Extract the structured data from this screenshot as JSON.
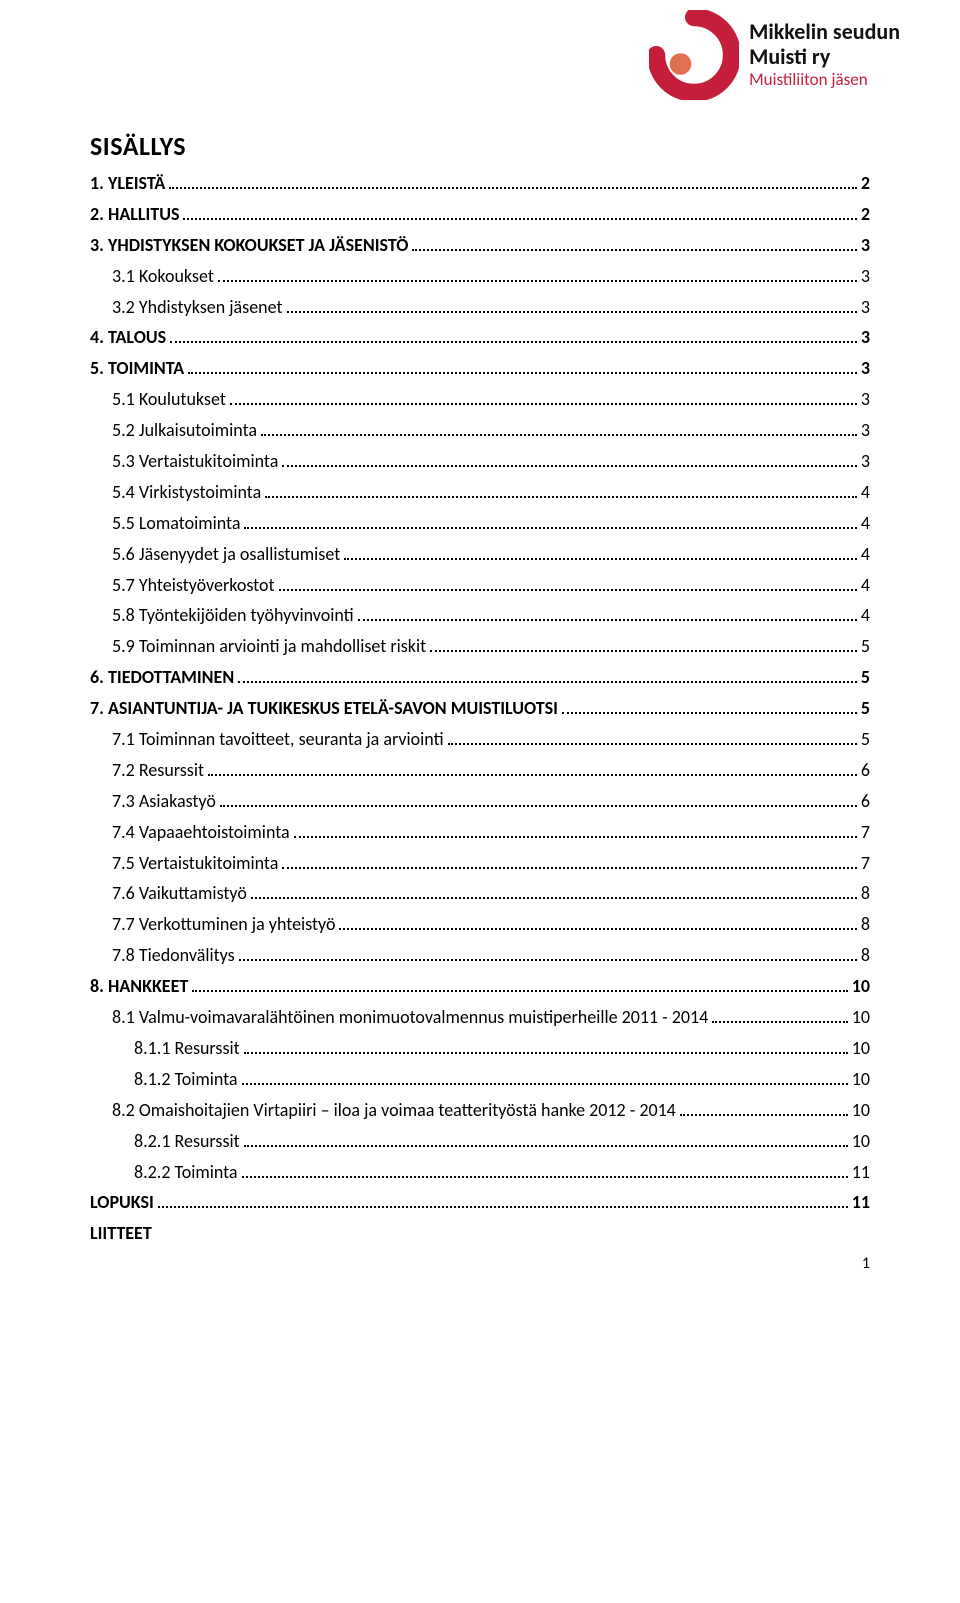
{
  "logo": {
    "line1": "Mikkelin seudun",
    "line2": "Muisti ry",
    "line3": "Muistiliiton jäsen",
    "outer_color": "#c41e3a",
    "inner_color": "#e07050"
  },
  "title": "SISÄLLYS",
  "footer_page": "1",
  "toc": [
    {
      "level": 1,
      "label": "1.    YLEISTÄ",
      "page": "2"
    },
    {
      "level": 1,
      "label": "2.    HALLITUS",
      "page": "2"
    },
    {
      "level": 1,
      "label": "3.    YHDISTYKSEN KOKOUKSET JA JÄSENISTÖ",
      "page": "3"
    },
    {
      "level": 2,
      "label": "3.1 Kokoukset",
      "page": "3"
    },
    {
      "level": 2,
      "label": "3.2 Yhdistyksen jäsenet",
      "page": "3"
    },
    {
      "level": 1,
      "label": "4.    TALOUS",
      "page": "3"
    },
    {
      "level": 1,
      "label": "5.    TOIMINTA",
      "page": "3"
    },
    {
      "level": 2,
      "label": "5.1 Koulutukset",
      "page": "3"
    },
    {
      "level": 2,
      "label": "5.2 Julkaisutoiminta",
      "page": "3"
    },
    {
      "level": 2,
      "label": "5.3 Vertaistukitoiminta",
      "page": "3"
    },
    {
      "level": 2,
      "label": "5.4 Virkistystoiminta",
      "page": "4"
    },
    {
      "level": 2,
      "label": "5.5 Lomatoiminta",
      "page": "4"
    },
    {
      "level": 2,
      "label": "5.6 Jäsenyydet ja osallistumiset",
      "page": "4"
    },
    {
      "level": 2,
      "label": "5.7 Yhteistyöverkostot",
      "page": "4"
    },
    {
      "level": 2,
      "label": "5.8 Työntekijöiden työhyvinvointi",
      "page": "4"
    },
    {
      "level": 2,
      "label": "5.9 Toiminnan arviointi ja mahdolliset riskit",
      "page": "5"
    },
    {
      "level": 1,
      "label": "6.    TIEDOTTAMINEN",
      "page": "5"
    },
    {
      "level": 1,
      "label": "7. ASIANTUNTIJA- JA TUKIKESKUS ETELÄ-SAVON MUISTILUOTSI",
      "page": "5"
    },
    {
      "level": 2,
      "label": "7.1 Toiminnan tavoitteet, seuranta ja arviointi",
      "page": "5"
    },
    {
      "level": 2,
      "label": "7.2 Resurssit",
      "page": "6"
    },
    {
      "level": 2,
      "label": "7.3 Asiakastyö",
      "page": "6"
    },
    {
      "level": 2,
      "label": "7.4 Vapaaehtoistoiminta",
      "page": "7"
    },
    {
      "level": 2,
      "label": "7.5 Vertaistukitoiminta",
      "page": "7"
    },
    {
      "level": 2,
      "label": "7.6 Vaikuttamistyö",
      "page": "8"
    },
    {
      "level": 2,
      "label": "7.7 Verkottuminen ja yhteistyö",
      "page": "8"
    },
    {
      "level": 2,
      "label": "7.8 Tiedonvälitys",
      "page": "8"
    },
    {
      "level": 1,
      "label": "8. HANKKEET",
      "page": "10"
    },
    {
      "level": 2,
      "label": "8.1 Valmu-voimavaralähtöinen monimuotovalmennus muistiperheille 2011 - 2014",
      "page": "10"
    },
    {
      "level": 3,
      "label": "8.1.1 Resurssit",
      "page": "10"
    },
    {
      "level": 3,
      "label": "8.1.2 Toiminta",
      "page": "10"
    },
    {
      "level": 2,
      "label": "8.2 Omaishoitajien Virtapiiri – iloa ja voimaa teatterityöstä hanke 2012 - 2014",
      "page": "10"
    },
    {
      "level": 3,
      "label": "8.2.1 Resurssit",
      "page": "10"
    },
    {
      "level": 3,
      "label": "8.2.2 Toiminta",
      "page": "11"
    },
    {
      "level": 1,
      "label": "LOPUKSI",
      "page": "11"
    },
    {
      "level": 1,
      "label": "LIITTEET",
      "page": ""
    }
  ]
}
